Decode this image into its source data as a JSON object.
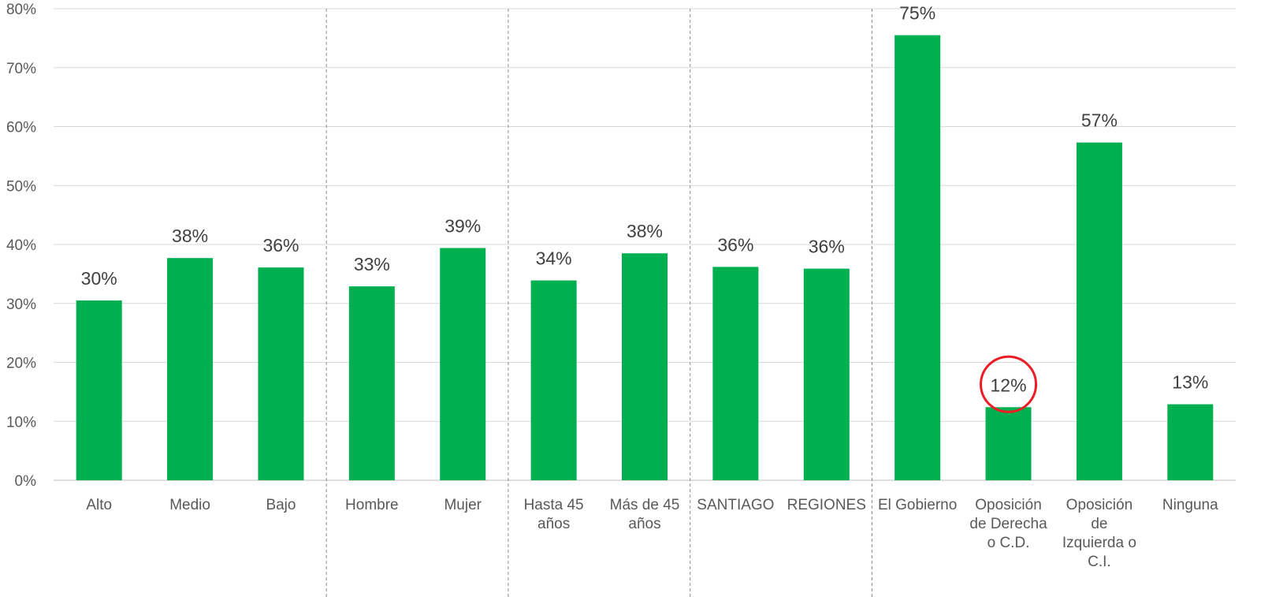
{
  "chart_data": {
    "type": "bar",
    "categories": [
      [
        "Alto"
      ],
      [
        "Medio"
      ],
      [
        "Bajo"
      ],
      [
        "Hombre"
      ],
      [
        "Mujer"
      ],
      [
        "Hasta 45",
        "años"
      ],
      [
        "Más de 45",
        "años"
      ],
      [
        "SANTIAGO"
      ],
      [
        "REGIONES"
      ],
      [
        "El Gobierno"
      ],
      [
        "Oposición",
        "de Derecha",
        "o C.D."
      ],
      [
        "Oposición",
        "de",
        "Izquierda o",
        "C.I."
      ],
      [
        "Ninguna"
      ]
    ],
    "values": [
      30.5,
      37.7,
      36.1,
      32.9,
      39.4,
      33.9,
      38.5,
      36.2,
      35.9,
      75.5,
      12.4,
      57.3,
      12.9
    ],
    "data_labels": [
      "30%",
      "38%",
      "36%",
      "33%",
      "39%",
      "34%",
      "38%",
      "36%",
      "36%",
      "75%",
      "12%",
      "57%",
      "13%"
    ],
    "ylim": [
      0,
      80
    ],
    "yticks": [
      "0%",
      "10%",
      "20%",
      "30%",
      "40%",
      "50%",
      "60%",
      "70%",
      "80%"
    ],
    "grid": true,
    "group_separators_after": [
      2,
      4,
      6,
      8
    ],
    "highlighted_index": 10,
    "colors": {
      "bar": "#00b050",
      "highlight_circle": "#ee1c25",
      "grid": "#d9d9d9",
      "separator": "#8c8c8c"
    }
  }
}
